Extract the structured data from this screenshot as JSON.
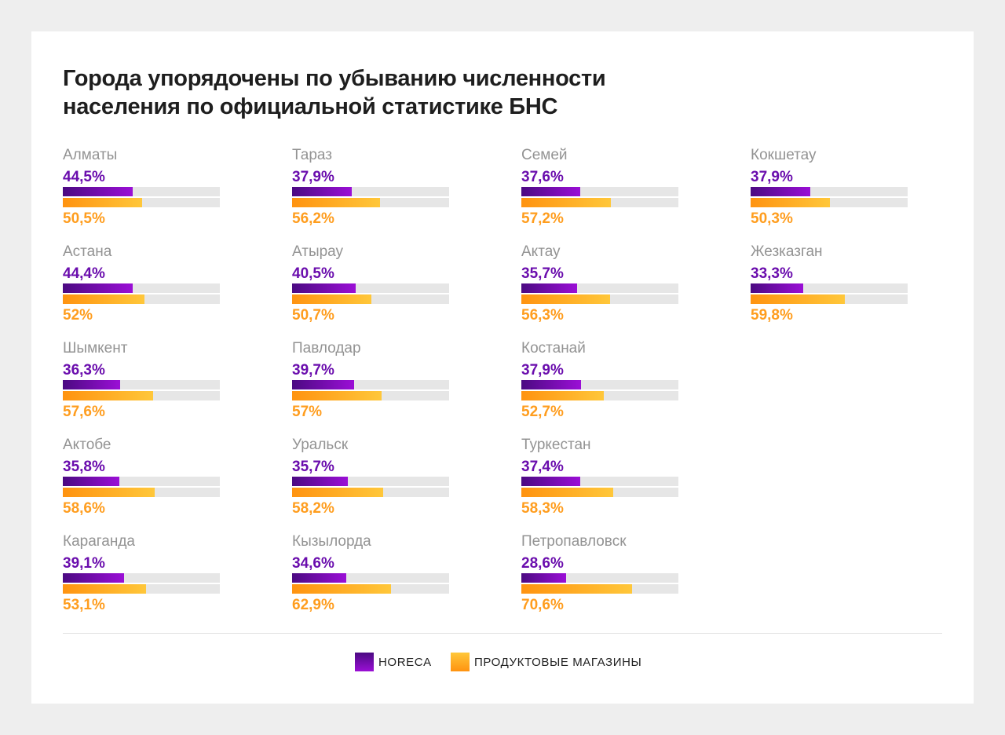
{
  "chart_data": {
    "type": "bar",
    "title": "Города упорядочены по убыванию численности населения по официальной статистике БНС",
    "unit": "%",
    "xlim": [
      0,
      100
    ],
    "series_names": [
      "HORECA",
      "ПРОДУКТОВЫЕ МАГАЗИНЫ"
    ],
    "colors": {
      "horeca": "#7a0cc0",
      "grocery": "#ffa51f"
    },
    "legend_position": "bottom-center",
    "cities": [
      {
        "name": "Алматы",
        "horeca": 44.5,
        "horeca_label": "44,5%",
        "grocery": 50.5,
        "grocery_label": "50,5%"
      },
      {
        "name": "Астана",
        "horeca": 44.4,
        "horeca_label": "44,4%",
        "grocery": 52,
        "grocery_label": "52%"
      },
      {
        "name": "Шымкент",
        "horeca": 36.3,
        "horeca_label": "36,3%",
        "grocery": 57.6,
        "grocery_label": "57,6%"
      },
      {
        "name": "Актобе",
        "horeca": 35.8,
        "horeca_label": "35,8%",
        "grocery": 58.6,
        "grocery_label": "58,6%"
      },
      {
        "name": "Караганда",
        "horeca": 39.1,
        "horeca_label": "39,1%",
        "grocery": 53.1,
        "grocery_label": "53,1%"
      },
      {
        "name": "Тараз",
        "horeca": 37.9,
        "horeca_label": "37,9%",
        "grocery": 56.2,
        "grocery_label": "56,2%"
      },
      {
        "name": "Атырау",
        "horeca": 40.5,
        "horeca_label": "40,5%",
        "grocery": 50.7,
        "grocery_label": "50,7%"
      },
      {
        "name": "Павлодар",
        "horeca": 39.7,
        "horeca_label": "39,7%",
        "grocery": 57,
        "grocery_label": "57%"
      },
      {
        "name": "Уральск",
        "horeca": 35.7,
        "horeca_label": "35,7%",
        "grocery": 58.2,
        "grocery_label": "58,2%"
      },
      {
        "name": "Кызылорда",
        "horeca": 34.6,
        "horeca_label": "34,6%",
        "grocery": 62.9,
        "grocery_label": "62,9%"
      },
      {
        "name": "Семей",
        "horeca": 37.6,
        "horeca_label": "37,6%",
        "grocery": 57.2,
        "grocery_label": "57,2%"
      },
      {
        "name": "Актау",
        "horeca": 35.7,
        "horeca_label": "35,7%",
        "grocery": 56.3,
        "grocery_label": "56,3%"
      },
      {
        "name": "Костанай",
        "horeca": 37.9,
        "horeca_label": "37,9%",
        "grocery": 52.7,
        "grocery_label": "52,7%"
      },
      {
        "name": "Туркестан",
        "horeca": 37.4,
        "horeca_label": "37,4%",
        "grocery": 58.3,
        "grocery_label": "58,3%"
      },
      {
        "name": "Петропавловск",
        "horeca": 28.6,
        "horeca_label": "28,6%",
        "grocery": 70.6,
        "grocery_label": "70,6%"
      },
      {
        "name": "Кокшетау",
        "horeca": 37.9,
        "horeca_label": "37,9%",
        "grocery": 50.3,
        "grocery_label": "50,3%"
      },
      {
        "name": "Жезказган",
        "horeca": 33.3,
        "horeca_label": "33,3%",
        "grocery": 59.8,
        "grocery_label": "59,8%"
      }
    ]
  },
  "legend": {
    "horeca": "HORECA",
    "grocery": "ПРОДУКТОВЫЕ МАГАЗИНЫ"
  }
}
